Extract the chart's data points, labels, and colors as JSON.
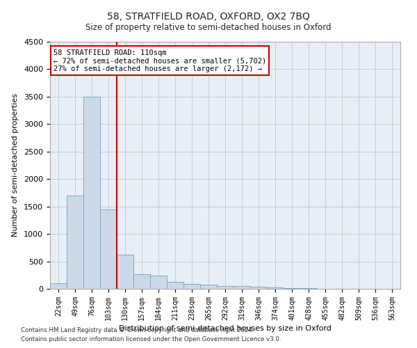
{
  "title": "58, STRATFIELD ROAD, OXFORD, OX2 7BQ",
  "subtitle": "Size of property relative to semi-detached houses in Oxford",
  "xlabel": "Distribution of semi-detached houses by size in Oxford",
  "ylabel": "Number of semi-detached properties",
  "annotation_title": "58 STRATFIELD ROAD: 110sqm",
  "annotation_line1": "← 72% of semi-detached houses are smaller (5,702)",
  "annotation_line2": "27% of semi-detached houses are larger (2,172) →",
  "footer_line1": "Contains HM Land Registry data © Crown copyright and database right 2024.",
  "footer_line2": "Contains public sector information licensed under the Open Government Licence v3.0.",
  "bar_color": "#ccd9e8",
  "bar_edge_color": "#7aaac8",
  "marker_line_color": "#cc0000",
  "annotation_box_color": "#ffffff",
  "annotation_box_edge": "#cc0000",
  "background_color": "#ffffff",
  "axes_bg_color": "#e8eef5",
  "grid_color": "#b8c8d8",
  "categories": [
    "22sqm",
    "49sqm",
    "76sqm",
    "103sqm",
    "130sqm",
    "157sqm",
    "184sqm",
    "211sqm",
    "238sqm",
    "265sqm",
    "292sqm",
    "319sqm",
    "346sqm",
    "374sqm",
    "401sqm",
    "428sqm",
    "455sqm",
    "482sqm",
    "509sqm",
    "536sqm",
    "563sqm"
  ],
  "values": [
    100,
    1700,
    3500,
    1450,
    620,
    270,
    240,
    130,
    85,
    70,
    55,
    45,
    35,
    20,
    10,
    7,
    5,
    5,
    4,
    3,
    2
  ],
  "ylim": [
    0,
    4500
  ],
  "yticks": [
    0,
    500,
    1000,
    1500,
    2000,
    2500,
    3000,
    3500,
    4000,
    4500
  ],
  "property_line_x": 3.5
}
